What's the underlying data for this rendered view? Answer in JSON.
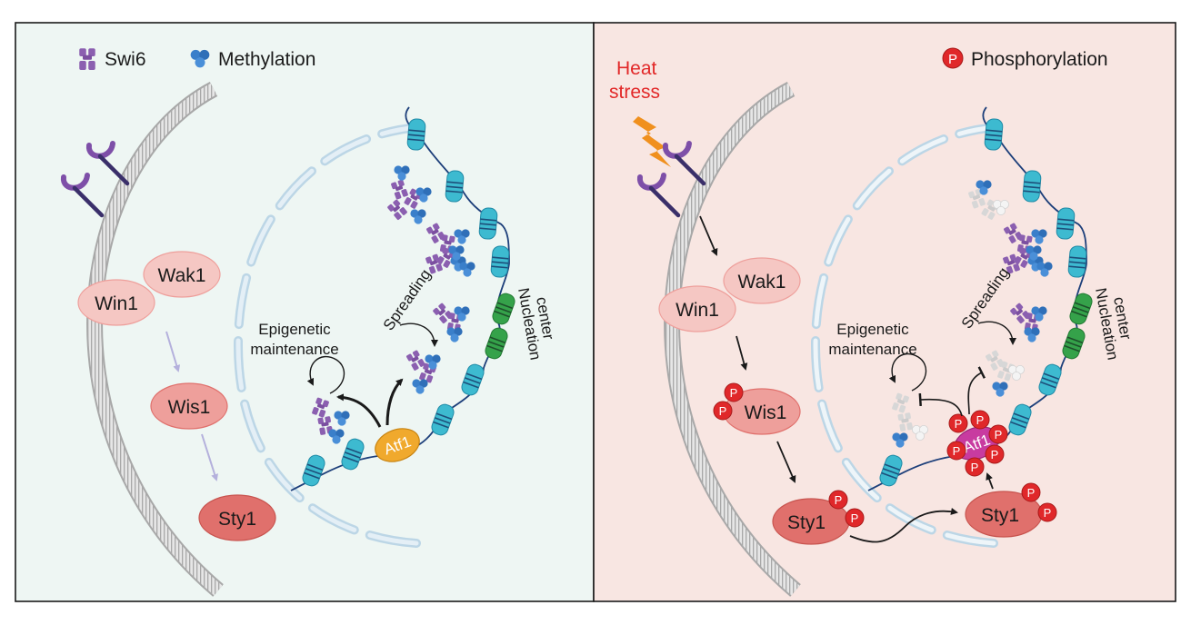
{
  "left_panel": {
    "legend": {
      "swi6_label": "Swi6",
      "methylation_label": "Methylation"
    },
    "proteins": {
      "wak1": "Wak1",
      "win1": "Win1",
      "wis1": "Wis1",
      "sty1": "Sty1",
      "atf1": "Atf1"
    },
    "labels": {
      "epigenetic_line1": "Epigenetic",
      "epigenetic_line2": "maintenance",
      "spreading": "Spreading",
      "nucleation_line1": "Nucleation",
      "nucleation_line2": "center"
    }
  },
  "right_panel": {
    "heat_line1": "Heat",
    "heat_line2": "stress",
    "phos_symbol": "P",
    "phos_label": "Phosphorylation",
    "proteins": {
      "wak1": "Wak1",
      "win1": "Win1",
      "wis1": "Wis1",
      "sty1": "Sty1",
      "atf1": "Atf1"
    },
    "labels": {
      "epigenetic_line1": "Epigenetic",
      "epigenetic_line2": "maintenance",
      "spreading": "Spreading",
      "nucleation_line1": "Nucleation",
      "nucleation_line2": "center"
    }
  },
  "colors": {
    "left_bg": "#eef6f3",
    "right_bg": "#f8e6e2",
    "swi6": "#8b5fb0",
    "methylation": "#3a7fca",
    "nucleosome": "#3dbad0",
    "nucleation_nucleosome": "#35a24a",
    "protein_light": "#f5c7c3",
    "protein_mid": "#ee9f9b",
    "protein_dark": "#e0706c",
    "atf1_left": "#f0a92d",
    "atf1_right": "#c83ba0",
    "phospho": "#e0282a",
    "heat_text": "#e22828",
    "lightning": "#f0901e"
  }
}
